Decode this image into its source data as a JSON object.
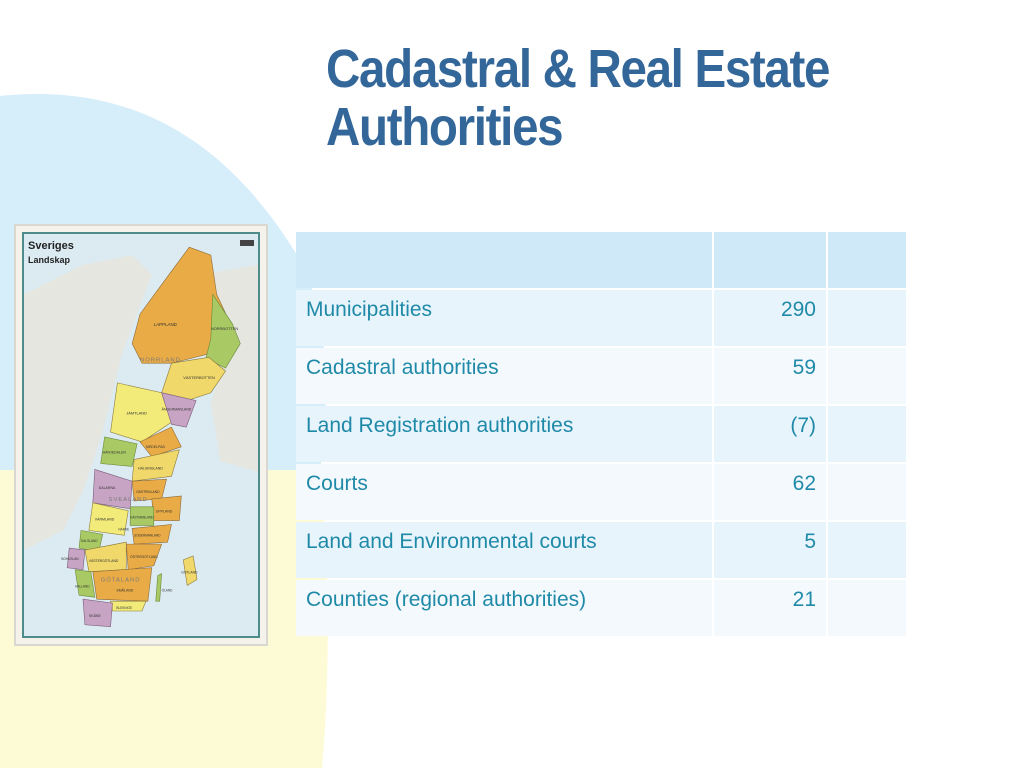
{
  "slide": {
    "title_line1": "Cadastral & Real Estate",
    "title_line2": "Authorities"
  },
  "map": {
    "title": "Sveriges",
    "subtitle": "Landskap",
    "labels": [
      "LAPPLAND",
      "NORRBOTTEN",
      "NORRLAND",
      "VÄSTERBOTTEN",
      "JÄMTLAND",
      "ÅNGERMANLAND",
      "HÄRJEDALEN",
      "MEDELPAD",
      "HÄLSINGLAND",
      "DALARNA",
      "GÄSTRIKLAND",
      "SVEALAND",
      "UPPLAND",
      "VÄSTMANLAND",
      "VÄRMLAND",
      "SÖDERMANLAND",
      "NÄRKE",
      "DALSLAND",
      "BOHUSLÄN",
      "VÄSTERGÖTLAND",
      "ÖSTERGÖTLAND",
      "GÖTALAND",
      "HALLAND",
      "SMÅLAND",
      "GOTLAND",
      "ÖLAND",
      "BLEKINGE",
      "SKÅNE"
    ]
  },
  "table": {
    "headers": [
      "",
      "",
      ""
    ],
    "rows": [
      {
        "label": "Municipalities",
        "value": "290",
        "extra": ""
      },
      {
        "label": "Cadastral authorities",
        "value": "59",
        "extra": ""
      },
      {
        "label": "Land Registration authorities",
        "value": "(7)",
        "extra": ""
      },
      {
        "label": "Courts",
        "value": "62",
        "extra": ""
      },
      {
        "label": "Land and Environmental courts",
        "value": "5",
        "extra": ""
      },
      {
        "label": "Counties (regional authorities)",
        "value": "21",
        "extra": ""
      }
    ]
  },
  "colors": {
    "title": "#336699",
    "table_text": "#1f8aa8",
    "table_header_bg": "#cfe9f8",
    "row_bg_a": "#e8f4fb",
    "row_bg_b": "#f4f9fd",
    "bg_blue": "#d6edfa",
    "bg_yellow": "#fdfbd6"
  }
}
